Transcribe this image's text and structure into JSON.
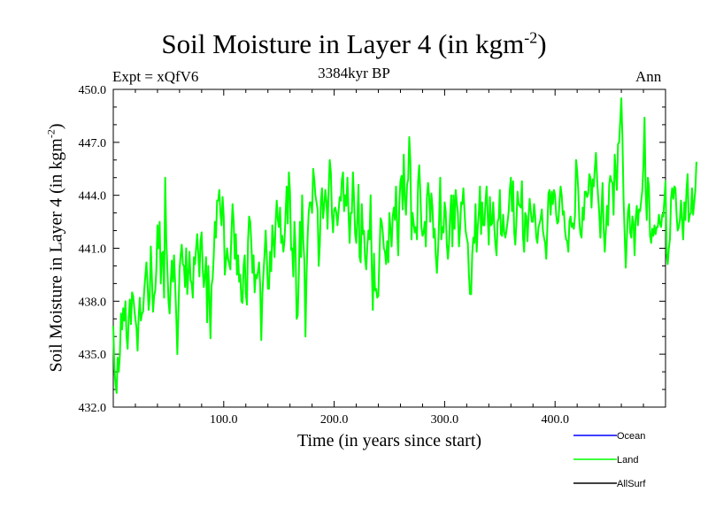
{
  "chart_data": {
    "type": "line",
    "title": "Soil Moisture in Layer 4 (in kgm",
    "title_exp": "-2",
    "title_end": ")",
    "subtitle": "3384kyr BP",
    "expt_label": "Expt = xQfV6",
    "season_label": "Ann",
    "xlabel": "Time (in years since start)",
    "ylabel": "Soil Moisture in Layer 4 (in kgm",
    "ylabel_exp": "-2",
    "ylabel_end": ")",
    "xlim": [
      0,
      500
    ],
    "ylim": [
      432,
      450
    ],
    "x_ticks": [
      100,
      200,
      300,
      400
    ],
    "x_tick_labels": [
      "100.0",
      "200.0",
      "300.0",
      "400.0"
    ],
    "y_ticks": [
      432,
      435,
      438,
      441,
      444,
      447,
      450
    ],
    "y_tick_labels": [
      "432.0",
      "435.0",
      "438.0",
      "441.0",
      "444.0",
      "447.0",
      "450.0"
    ],
    "legend": [
      {
        "name": "Ocean",
        "color": "#0000ff"
      },
      {
        "name": "Land",
        "color": "#00ff00"
      },
      {
        "name": "AllSurf",
        "color": "#000000"
      }
    ],
    "series": [
      {
        "name": "Land",
        "color": "#00ff00",
        "x_start": 0,
        "x_step": 1,
        "values": [
          436.6,
          434.2,
          433.3,
          432.8,
          434.8,
          434.0,
          435.0,
          437.3,
          436.4,
          437.6,
          436.9,
          438.0,
          436.0,
          435.3,
          437.0,
          438.1,
          436.7,
          438.5,
          438.3,
          437.6,
          437.0,
          436.5,
          435.2,
          437.1,
          438.2,
          436.9,
          437.3,
          437.4,
          438.6,
          439.4,
          440.2,
          439.0,
          437.5,
          438.2,
          441.1,
          439.3,
          437.4,
          438.3,
          438.6,
          439.8,
          442.3,
          441.0,
          442.5,
          439.0,
          440.7,
          440.8,
          438.2,
          445.0,
          441.5,
          439.8,
          438.0,
          437.3,
          439.0,
          440.3,
          439.1,
          440.6,
          439.0,
          437.2,
          435.0,
          437.4,
          439.8,
          440.6,
          441.2,
          440.1,
          440.0,
          438.8,
          441.0,
          438.4,
          439.5,
          440.8,
          439.2,
          439.0,
          438.2,
          440.5,
          440.1,
          441.0,
          441.8,
          440.6,
          439.4,
          441.4,
          441.9,
          439.8,
          438.8,
          439.5,
          440.5,
          436.8,
          440.0,
          438.2,
          435.9,
          438.9,
          439.3,
          440.6,
          442.5,
          441.6,
          443.7,
          443.7,
          444.3,
          443.0,
          442.3,
          443.9,
          442.8,
          439.5,
          440.2,
          441.0,
          440.4,
          440.1,
          439.8,
          441.9,
          443.5,
          442.5,
          440.4,
          441.8,
          439.5,
          440.6,
          439.1,
          439.5,
          438.0,
          437.9,
          440.0,
          440.6,
          438.4,
          437.8,
          441.4,
          442.8,
          442.5,
          441.3,
          439.6,
          440.6,
          438.5,
          439.5,
          439.3,
          439.7,
          440.2,
          438.9,
          435.8,
          438.4,
          439.6,
          440.7,
          442.0,
          440.5,
          438.7,
          438.7,
          440.8,
          439.7,
          442.3,
          441.4,
          440.5,
          442.5,
          443.7,
          442.6,
          442.2,
          443.3,
          441.3,
          441.7,
          440.8,
          441.4,
          442.9,
          444.5,
          442.4,
          445.3,
          444.2,
          440.9,
          441.0,
          439.4,
          442.5,
          441.1,
          437.0,
          437.2,
          439.5,
          442.5,
          440.5,
          444.0,
          441.5,
          440.3,
          436.0,
          439.5,
          441.7,
          443.1,
          443.6,
          443.6,
          443.0,
          445.5,
          444.9,
          444.0,
          443.6,
          443.2,
          440.0,
          441.2,
          443.7,
          444.4,
          442.7,
          443.4,
          444.3,
          443.7,
          442.1,
          444.3,
          446.0,
          445.3,
          442.9,
          441.9,
          443.2,
          443.3,
          443.0,
          442.3,
          443.1,
          443.9,
          443.7,
          444.9,
          445.3,
          443.1,
          444.0,
          443.4,
          445.0,
          443.0,
          441.3,
          443.0,
          443.0,
          445.3,
          443.8,
          441.8,
          441.3,
          442.7,
          444.6,
          440.5,
          440.2,
          443.5,
          441.8,
          442.0,
          440.4,
          439.8,
          441.1,
          442.0,
          441.5,
          444.0,
          440.1,
          437.5,
          440.7,
          438.6,
          438.7,
          438.2,
          438.3,
          440.6,
          442.7,
          442.5,
          441.9,
          441.0,
          440.8,
          440.1,
          441.4,
          440.2,
          443.0,
          442.1,
          441.1,
          442.8,
          443.3,
          442.6,
          444.5,
          442.2,
          440.6,
          443.6,
          444.8,
          445.1,
          443.2,
          446.3,
          443.8,
          442.9,
          444.6,
          444.9,
          447.3,
          445.9,
          441.5,
          443.0,
          442.4,
          441.9,
          442.2,
          441.5,
          444.8,
          445.7,
          444.2,
          442.2,
          441.7,
          441.9,
          442.5,
          441.1,
          443.9,
          444.7,
          443.9,
          442.5,
          444.1,
          443.3,
          441.6,
          442.1,
          440.6,
          439.6,
          440.8,
          442.6,
          445.0,
          441.5,
          442.2,
          441.9,
          443.6,
          443.1,
          441.2,
          440.4,
          441.3,
          442.9,
          444.0,
          441.1,
          444.0,
          442.1,
          444.3,
          443.6,
          443.0,
          441.1,
          442.1,
          443.6,
          443.5,
          444.4,
          443.1,
          442.0,
          441.6,
          441.3,
          439.5,
          438.4,
          438.4,
          440.7,
          441.6,
          441.3,
          443.5,
          440.8,
          442.2,
          443.0,
          444.5,
          441.8,
          443.6,
          442.3,
          442.3,
          443.6,
          444.5,
          442.9,
          441.2,
          443.9,
          442.3,
          442.4,
          443.6,
          442.2,
          441.2,
          440.6,
          442.5,
          442.7,
          444.3,
          441.8,
          441.7,
          442.9,
          441.9,
          441.6,
          442.0,
          442.5,
          443.1,
          444.3,
          445.0,
          443.1,
          444.8,
          441.9,
          441.2,
          442.5,
          444.2,
          443.5,
          443.4,
          443.3,
          444.8,
          441.6,
          440.8,
          443.0,
          442.8,
          441.4,
          442.8,
          443.8,
          443.1,
          442.5,
          442.5,
          443.5,
          442.8,
          441.6,
          441.3,
          442.2,
          442.4,
          442.7,
          443.2,
          442.0,
          441.6,
          441.3,
          440.4,
          442.1,
          444.1,
          444.3,
          442.9,
          444.2,
          443.5,
          444.3,
          444.0,
          442.9,
          442.4,
          442.5,
          443.6,
          444.5,
          444.0,
          442.9,
          443.1,
          442.0,
          441.5,
          441.4,
          440.8,
          442.5,
          442.8,
          442.2,
          442.4,
          442.1,
          442.8,
          446.0,
          445.4,
          444.3,
          442.5,
          441.8,
          441.6,
          443.3,
          442.6,
          444.2,
          444.2,
          443.9,
          444.1,
          445.2,
          445.0,
          443.3,
          444.9,
          444.5,
          445.5,
          446.4,
          445.0,
          443.9,
          443.0,
          441.6,
          443.1,
          444.7,
          442.1,
          440.8,
          442.0,
          443.4,
          442.3,
          444.6,
          445.1,
          444.8,
          444.7,
          442.9,
          446.3,
          445.2,
          444.3,
          446.9,
          447.0,
          448.2,
          449.5,
          447.2,
          443.8,
          441.8,
          439.9,
          441.6,
          443.1,
          443.5,
          441.9,
          441.6,
          442.8,
          442.4,
          440.6,
          442.7,
          443.4,
          442.3,
          443.2,
          443.1,
          443.7,
          444.3,
          445.7,
          448.4,
          444.3,
          442.6,
          445.0,
          444.5,
          441.7,
          441.3,
          442.1,
          441.7,
          442.3,
          441.8,
          442.2,
          442.2,
          442.9,
          442.4,
          442.2,
          442.9,
          442.8,
          443.8,
          444.8,
          440.7,
          440.1,
          441.0,
          441.5,
          443.8,
          444.4,
          443.8,
          444.5,
          444.4,
          442.9,
          442.0,
          442.2,
          442.6,
          443.7,
          442.5,
          441.5,
          443.6,
          442.6,
          444.3,
          445.2,
          442.5,
          442.9,
          443.0,
          444.4,
          442.9,
          443.6,
          444.3,
          445.9
        ]
      }
    ]
  }
}
